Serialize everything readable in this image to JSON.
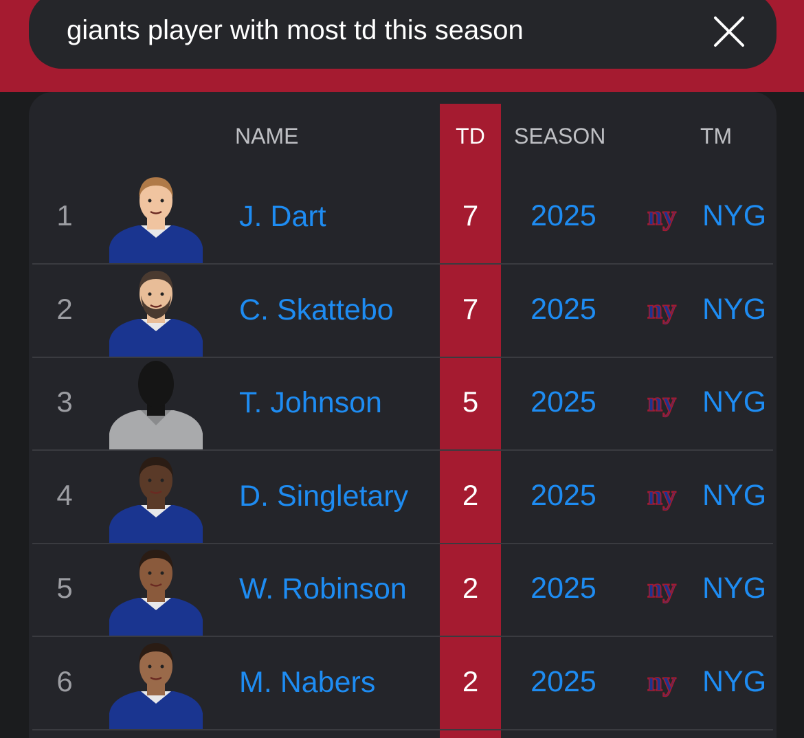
{
  "search": {
    "query": "giants player with most td this season"
  },
  "table": {
    "headers": {
      "name": "NAME",
      "td": "TD",
      "season": "SEASON",
      "team": "TM"
    },
    "rows": [
      {
        "rank": "1",
        "name": "J. Dart",
        "td": "7",
        "season": "2025",
        "team": "NYG"
      },
      {
        "rank": "2",
        "name": "C. Skattebo",
        "td": "7",
        "season": "2025",
        "team": "NYG"
      },
      {
        "rank": "3",
        "name": "T. Johnson",
        "td": "5",
        "season": "2025",
        "team": "NYG"
      },
      {
        "rank": "4",
        "name": "D. Singletary",
        "td": "2",
        "season": "2025",
        "team": "NYG"
      },
      {
        "rank": "5",
        "name": "W. Robinson",
        "td": "2",
        "season": "2025",
        "team": "NYG"
      },
      {
        "rank": "6",
        "name": "M. Nabers",
        "td": "2",
        "season": "2025",
        "team": "NYG"
      }
    ]
  },
  "icons": {
    "close": "close-icon",
    "team_logo": "giants-logo-icon",
    "avatar": "player-avatar",
    "placeholder_avatar": "silhouette-avatar"
  },
  "colors": {
    "accent_red": "#a51b30",
    "link_blue": "#1e8cf2",
    "card_bg": "#24252a",
    "page_bg": "#1b1c1e",
    "jersey_blue": "#1a3590"
  }
}
